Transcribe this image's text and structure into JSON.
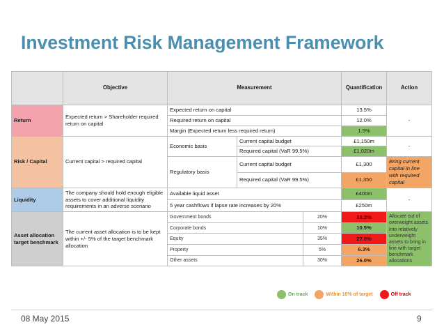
{
  "title": "Investment Risk Management Framework",
  "headers": {
    "objective": "Objective",
    "measurement": "Measurement",
    "quantification": "Quantification",
    "action": "Action"
  },
  "return": {
    "label": "Return",
    "objective": "Expected return > Shareholder required return on capital",
    "rows": [
      {
        "measure": "Expected return on capital",
        "value": "13.5%"
      },
      {
        "measure": "Required return on capital",
        "value": "12.0%"
      },
      {
        "measure": "Margin (Expected return less required return)",
        "value": "1.5%"
      }
    ],
    "action": "-"
  },
  "risk": {
    "label": "Risk / Capital",
    "objective": "Current capital > required capital",
    "economic_basis": "Economic basis",
    "regulatory_basis": "Regulatory basis",
    "econ_rows": [
      {
        "measure": "Current capital budget",
        "value": "£1,150m"
      },
      {
        "measure": "Required capital (VaR 99.5%)",
        "value": "£1,020m"
      }
    ],
    "reg_rows": [
      {
        "measure": "Current capital budget",
        "value": "£1,300"
      },
      {
        "measure": "Required capital (VaR 99.5%)",
        "value": "£1,350"
      }
    ],
    "econ_action": "-",
    "reg_action": "Bring current capital in line with required capital"
  },
  "liquidity": {
    "label": "Liquidity",
    "objective": "The company should hold enough eligible assets to cover additional liquidity requirements in an adverse scenario",
    "rows": [
      {
        "measure": "Available liquid asset",
        "value": "£400m"
      },
      {
        "measure": "5 year cashflows if lapse rate increases by 20%",
        "value": "£250m"
      }
    ],
    "action": "-"
  },
  "asset": {
    "label": "Asset allocation target benchmark",
    "objective": "The current asset allocation is to be kept within +/- 5% of the target benchmark allocation",
    "rows": [
      {
        "measure": "Government bonds",
        "target": "20%",
        "value": "38.2%"
      },
      {
        "measure": "Corporate bonds",
        "target": "10%",
        "value": "10.5%"
      },
      {
        "measure": "Equity",
        "target": "35%",
        "value": "27.0%"
      },
      {
        "measure": "Property",
        "target": "5%",
        "value": "6.3%"
      },
      {
        "measure": "Other assets",
        "target": "30%",
        "value": "26.0%"
      }
    ],
    "action": "Allocate out of overweight assets into relatively underweight assets to bring in line with target benchmark allocations"
  },
  "legend": {
    "on_track": "On track",
    "within": "Within 10% of target",
    "off_track": "Off track"
  },
  "colors": {
    "green": "#8dc06a",
    "orange": "#f2a564",
    "red": "#f01818"
  },
  "footer": {
    "date": "08 May 2015",
    "page": "9"
  }
}
